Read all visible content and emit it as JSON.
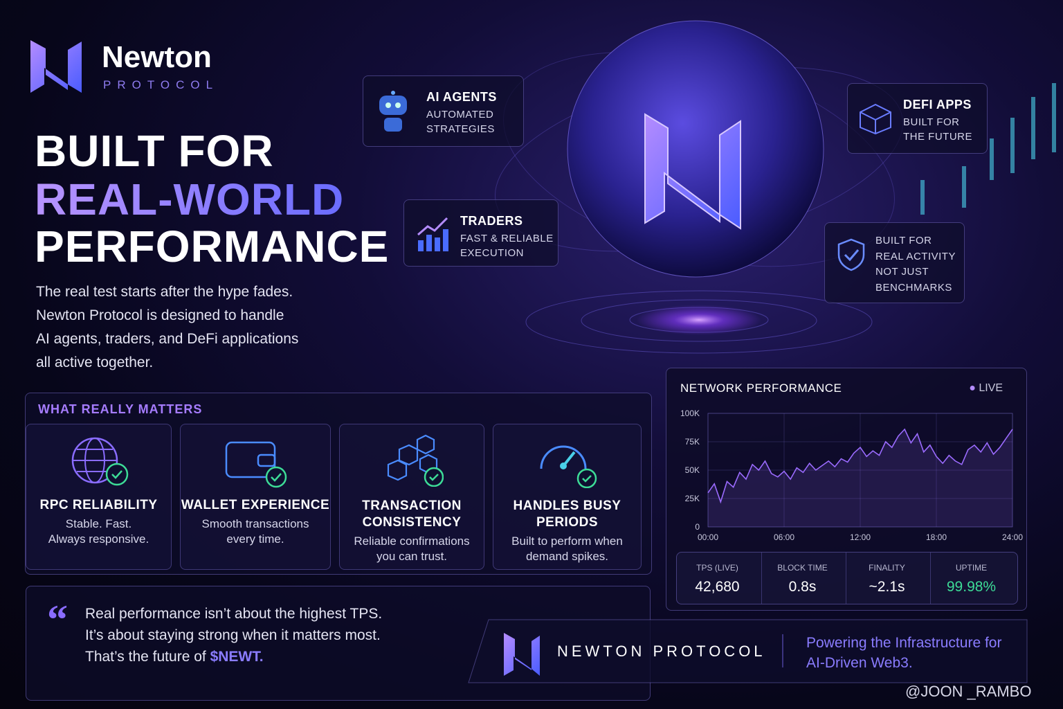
{
  "brand": {
    "name": "Newton",
    "sub": "PROTOCOL"
  },
  "headline": {
    "line1": "BUILT FOR",
    "line2": "REAL-WORLD",
    "line3": "PERFORMANCE"
  },
  "intro": [
    "The real test starts after the hype fades.",
    "Newton Protocol is designed to handle",
    "AI agents, traders, and DeFi applications",
    "all active together."
  ],
  "callouts": [
    {
      "title": "AI AGENTS",
      "lines": [
        "AUTOMATED",
        "STRATEGIES"
      ]
    },
    {
      "title": "DEFI APPS",
      "lines": [
        "BUILT FOR",
        "THE FUTURE"
      ]
    },
    {
      "title": "TRADERS",
      "lines": [
        "FAST & RELIABLE",
        "EXECUTION"
      ]
    },
    {
      "lines": [
        "BUILT FOR",
        "REAL ACTIVITY",
        "NOT JUST",
        "BENCHMARKS"
      ]
    }
  ],
  "matters": {
    "heading": "WHAT REALLY MATTERS",
    "cards": [
      {
        "title": [
          "RPC RELIABILITY"
        ],
        "text": [
          "Stable. Fast.",
          "Always responsive."
        ]
      },
      {
        "title": [
          "WALLET EXPERIENCE"
        ],
        "text": [
          "Smooth transactions",
          "every time."
        ]
      },
      {
        "title": [
          "TRANSACTION",
          "CONSISTENCY"
        ],
        "text": [
          "Reliable confirmations",
          "you can trust."
        ]
      },
      {
        "title": [
          "HANDLES BUSY",
          "PERIODS"
        ],
        "text": [
          "Built to perform when",
          "demand spikes."
        ]
      }
    ]
  },
  "quote": {
    "lines": [
      "Real performance isn’t about the highest TPS.",
      "It’s about staying strong when it matters most.",
      "That’s the future of "
    ],
    "highlight": "$NEWT."
  },
  "footer": {
    "brand": "NEWTON PROTOCOL",
    "tagline": [
      "Powering the Infrastructure for",
      "AI-Driven Web3."
    ]
  },
  "watermark": "@JOON _RAMBO",
  "chart_data": {
    "type": "line",
    "title": "NETWORK PERFORMANCE",
    "status": "LIVE",
    "color": "#9b6bff",
    "grid": true,
    "x": [
      0,
      0.5,
      1,
      1.5,
      2,
      2.5,
      3,
      3.5,
      4,
      4.5,
      5,
      5.5,
      6,
      6.5,
      7,
      7.5,
      8,
      8.5,
      9,
      9.5,
      10,
      10.5,
      11,
      11.5,
      12,
      12.5,
      13,
      13.5,
      14,
      14.5,
      15,
      15.5,
      16,
      16.5,
      17,
      17.5,
      18,
      18.5,
      19,
      19.5,
      20,
      20.5,
      21,
      21.5,
      22,
      22.5,
      23,
      23.5,
      24
    ],
    "values": [
      30000,
      38000,
      22000,
      40000,
      35000,
      48000,
      42000,
      55000,
      50000,
      58000,
      47000,
      44000,
      49000,
      42000,
      52000,
      48000,
      56000,
      50000,
      54000,
      58000,
      53000,
      60000,
      57000,
      65000,
      70000,
      62000,
      67000,
      63000,
      75000,
      70000,
      80000,
      86000,
      74000,
      82000,
      66000,
      72000,
      62000,
      56000,
      63000,
      58000,
      55000,
      68000,
      72000,
      66000,
      74000,
      64000,
      70000,
      78000,
      86000
    ],
    "xlim": [
      0,
      24
    ],
    "xticks": [
      {
        "value": 0,
        "label": "00:00"
      },
      {
        "value": 6,
        "label": "06:00"
      },
      {
        "value": 12,
        "label": "12:00"
      },
      {
        "value": 18,
        "label": "18:00"
      },
      {
        "value": 24,
        "label": "24:00"
      }
    ],
    "ylim": [
      0,
      100000
    ],
    "yticks": [
      0,
      {
        "value": 25000,
        "label": "25K"
      },
      {
        "value": 50000,
        "label": "50K"
      },
      {
        "value": 75000,
        "label": "75K"
      },
      {
        "value": 100000,
        "label": "100K"
      }
    ],
    "stats": [
      {
        "label": "TPS (LIVE)",
        "value": "42,680"
      },
      {
        "label": "BLOCK TIME",
        "value": "0.8s"
      },
      {
        "label": "FINALITY",
        "value": "~2.1s"
      },
      {
        "label": "UPTIME",
        "value": "99.98%"
      }
    ]
  }
}
